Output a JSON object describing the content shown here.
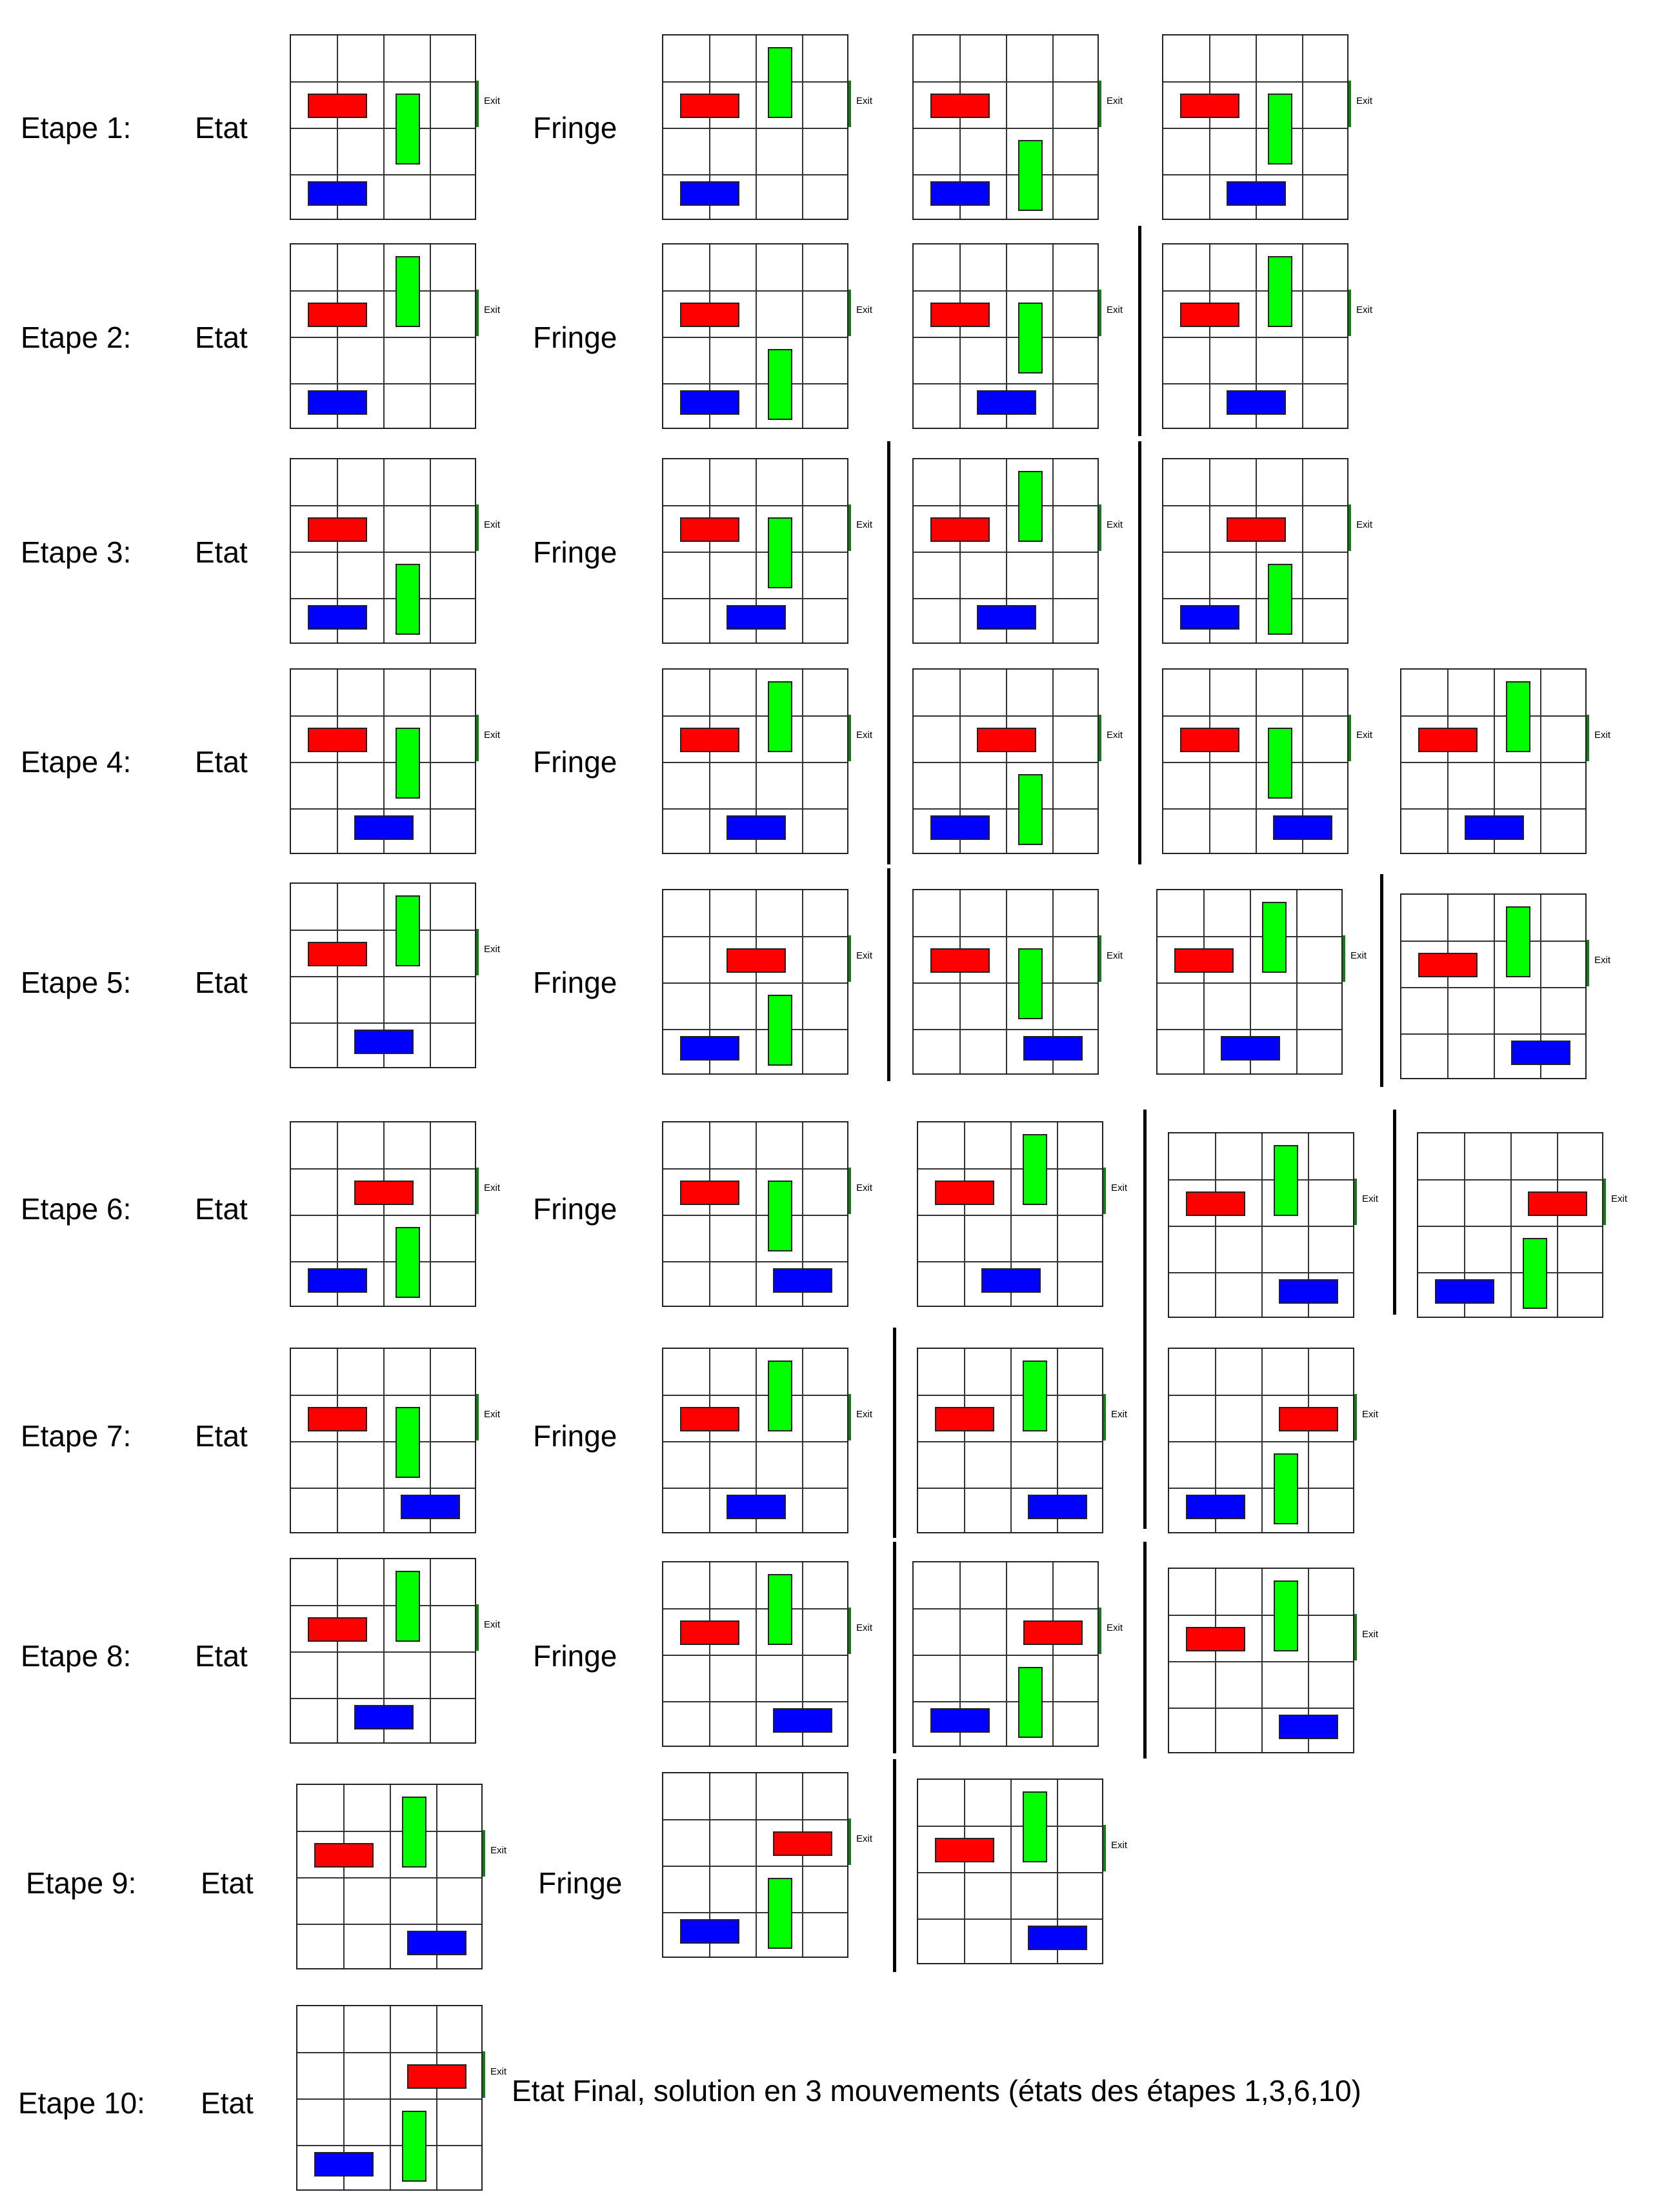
{
  "labels": {
    "etat": "Etat",
    "fringe": "Fringe",
    "exit": "Exit"
  },
  "colors": {
    "red": "#ff0000",
    "green": "#00ff00",
    "blue": "#0000ff"
  },
  "steps": [
    {
      "label": "Etape 1:"
    },
    {
      "label": "Etape 2:"
    },
    {
      "label": "Etape 3:"
    },
    {
      "label": "Etape 4:"
    },
    {
      "label": "Etape 5:"
    },
    {
      "label": "Etape 6:"
    },
    {
      "label": "Etape 7:"
    },
    {
      "label": "Etape 8:"
    },
    {
      "label": "Etape 9:"
    },
    {
      "label": "Etape 10:"
    }
  ],
  "final_text": "Etat Final, solution en 3 mouvements (états des étapes 1,3,6,10)"
}
